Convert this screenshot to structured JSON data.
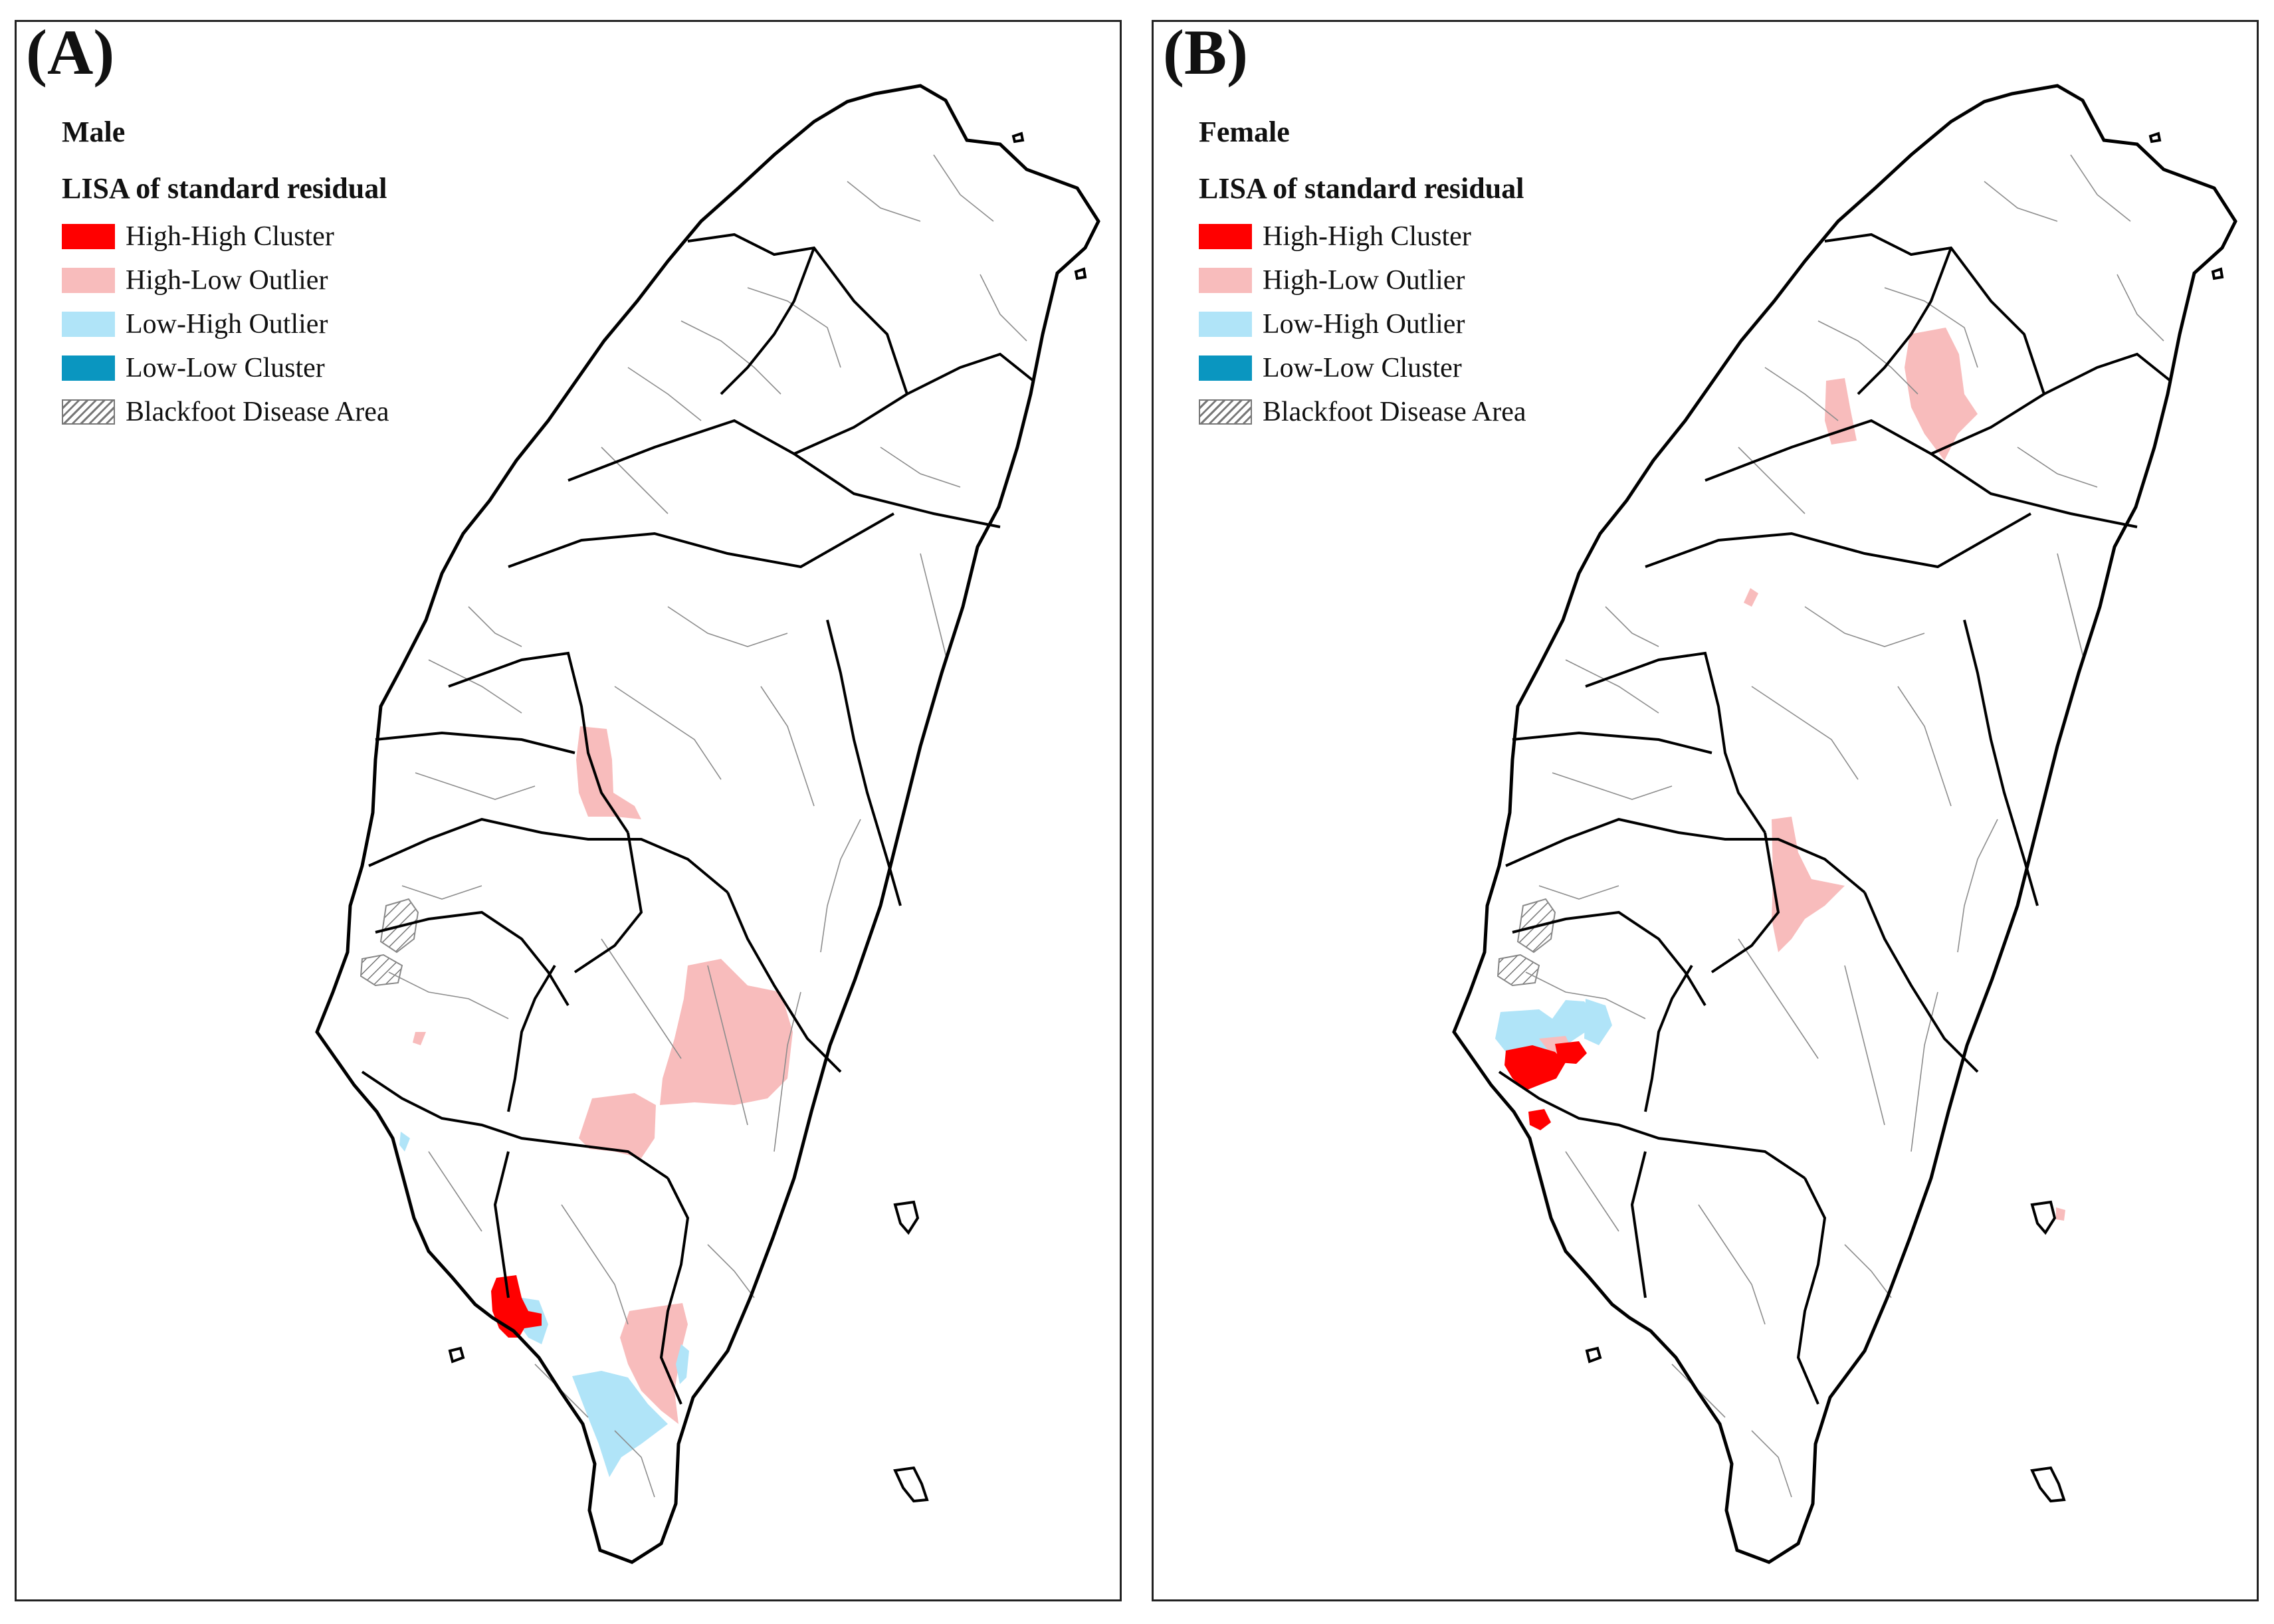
{
  "panels": [
    {
      "label": "(A)",
      "sex": "Male",
      "legend_title": "LISA of standard residual",
      "legend": [
        {
          "label": "High-High Cluster",
          "color": "#ff0000",
          "hatch": false
        },
        {
          "label": "High-Low Outlier",
          "color": "#f8bcbc",
          "hatch": false
        },
        {
          "label": "Low-High Outlier",
          "color": "#b0e4f8",
          "hatch": false
        },
        {
          "label": "Low-Low Cluster",
          "color": "#0a96c0",
          "hatch": false
        },
        {
          "label": "Blackfoot Disease Area",
          "color": "#ffffff",
          "hatch": true
        }
      ]
    },
    {
      "label": "(B)",
      "sex": "Female",
      "legend_title": "LISA of standard residual",
      "legend": [
        {
          "label": "High-High Cluster",
          "color": "#ff0000",
          "hatch": false
        },
        {
          "label": "High-Low Outlier",
          "color": "#f8bcbc",
          "hatch": false
        },
        {
          "label": "Low-High Outlier",
          "color": "#b0e4f8",
          "hatch": false
        },
        {
          "label": "Low-Low Cluster",
          "color": "#0a96c0",
          "hatch": false
        },
        {
          "label": "Blackfoot Disease Area",
          "color": "#ffffff",
          "hatch": true
        }
      ]
    }
  ]
}
